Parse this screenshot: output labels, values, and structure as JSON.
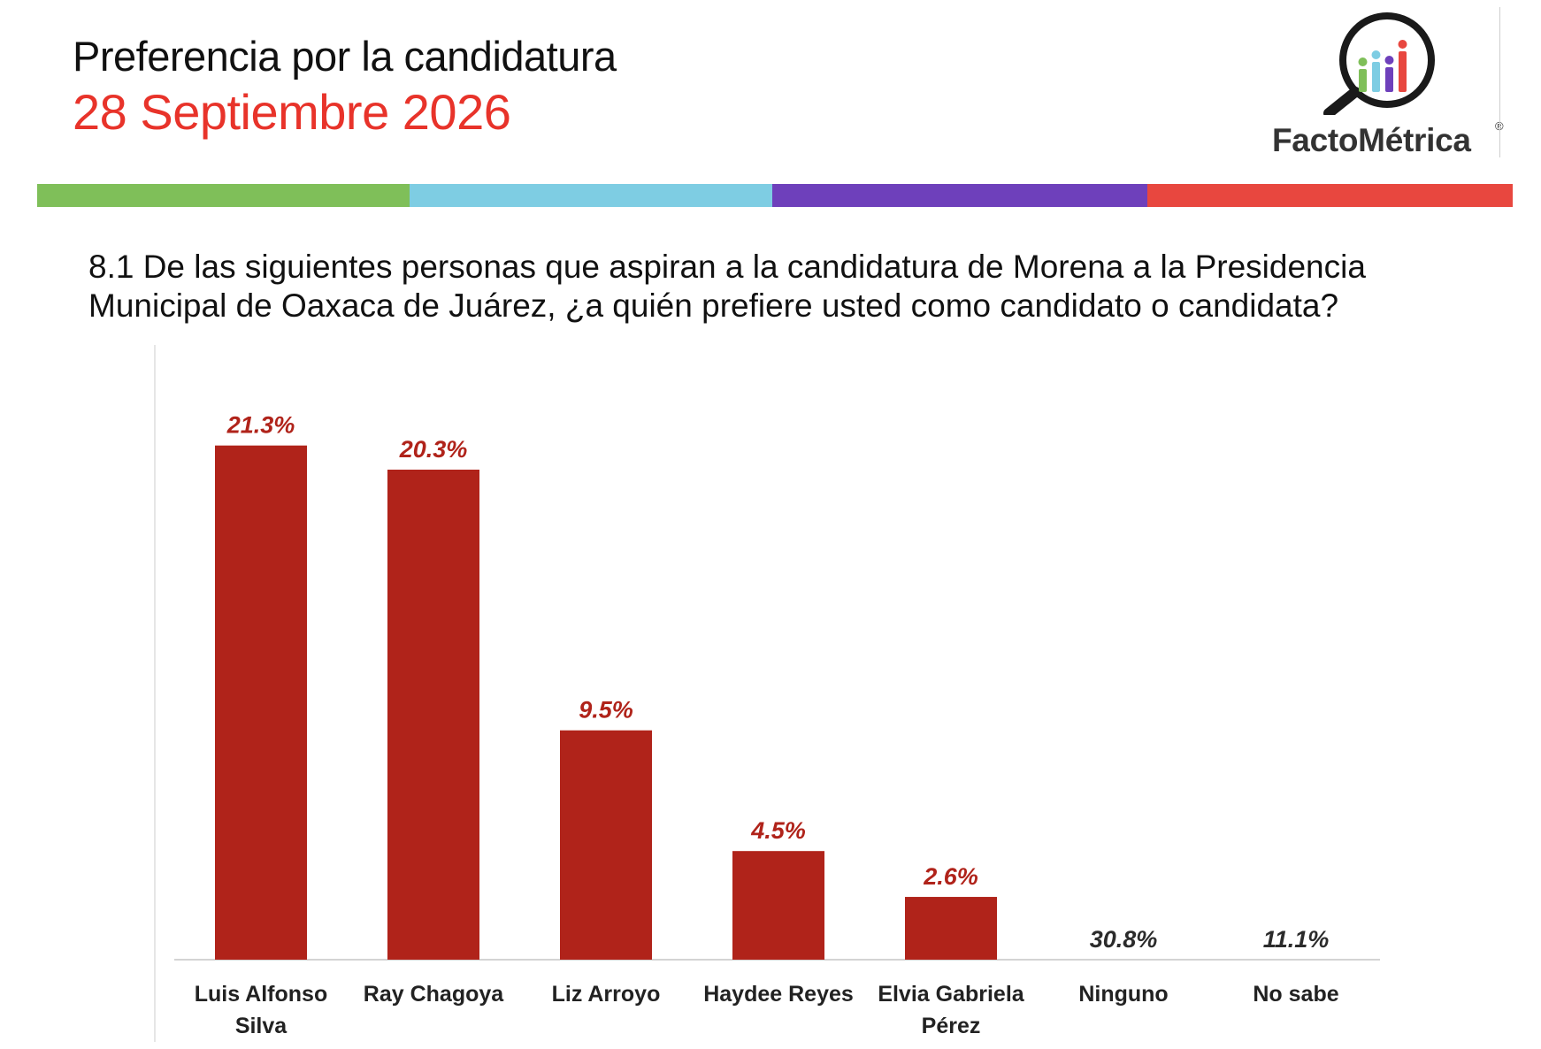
{
  "header": {
    "title": "Preferencia por la candidatura",
    "date": "28 Septiembre 2026"
  },
  "logo": {
    "name": "FactoMétrica",
    "reg": "®"
  },
  "stripe_colors": [
    "#7fbf59",
    "#7ecde3",
    "#6e40bb",
    "#e8473f"
  ],
  "question": "8.1 De las siguientes personas que aspiran a la candidatura de Morena a la Presidencia Municipal de Oaxaca de Juárez, ¿a quién prefiere usted como candidato o candidata?",
  "chart_data": {
    "type": "bar",
    "categories": [
      [
        "Luis Alfonso",
        "Silva"
      ],
      [
        "Ray Chagoya"
      ],
      [
        "Liz Arroyo"
      ],
      [
        "Haydee Reyes"
      ],
      [
        "Elvia Gabriela",
        "Pérez"
      ],
      [
        "Ninguno"
      ],
      [
        "No sabe"
      ]
    ],
    "values": [
      21.3,
      20.3,
      9.5,
      4.5,
      2.6,
      30.8,
      11.1
    ],
    "value_labels": [
      "21.3%",
      "20.3%",
      "9.5%",
      "4.5%",
      "2.6%",
      "30.8%",
      "11.1%"
    ],
    "bar_drawn": [
      true,
      true,
      true,
      true,
      true,
      false,
      false
    ],
    "bar_color": "#b0231a",
    "label_color_bar": "#b0231a",
    "label_color_nobar": "#2b2b2b",
    "ylim": [
      0,
      24
    ],
    "grid": false,
    "legend": "none"
  }
}
